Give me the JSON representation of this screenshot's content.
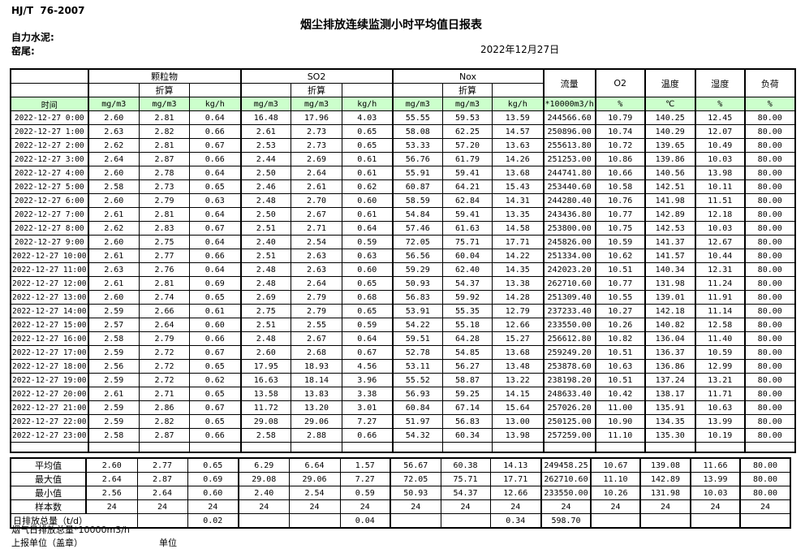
{
  "meta": {
    "standard": "HJ/T  76-2007",
    "title": "烟尘排放连续监测小时平均值日报表",
    "company": "自力水泥:",
    "kiln": "窑尾:",
    "date": "2022年12月27日"
  },
  "table": {
    "time_label": "时间",
    "converted_label": "折算",
    "groups": {
      "pm": "颗粒物",
      "so2": "SO2",
      "nox": "Nox",
      "flow": "流量",
      "o2": "O2",
      "temp": "温度",
      "humidity": "湿度",
      "load": "负荷"
    },
    "units": [
      "mg/m3",
      "mg/m3",
      "kg/h",
      "mg/m3",
      "mg/m3",
      "kg/h",
      "mg/m3",
      "mg/m3",
      "kg/h",
      "*10000m3/h",
      "%",
      "℃",
      "%",
      "%"
    ],
    "rows": [
      [
        "2022-12-27 0:00",
        "2.60",
        "2.81",
        "0.64",
        "16.48",
        "17.96",
        "4.03",
        "55.55",
        "59.53",
        "13.59",
        "244566.60",
        "10.79",
        "140.25",
        "12.45",
        "80.00"
      ],
      [
        "2022-12-27 1:00",
        "2.63",
        "2.82",
        "0.66",
        "2.61",
        "2.73",
        "0.65",
        "58.08",
        "62.25",
        "14.57",
        "250896.00",
        "10.74",
        "140.29",
        "12.07",
        "80.00"
      ],
      [
        "2022-12-27 2:00",
        "2.62",
        "2.81",
        "0.67",
        "2.53",
        "2.73",
        "0.65",
        "53.33",
        "57.20",
        "13.63",
        "255613.80",
        "10.72",
        "139.65",
        "10.49",
        "80.00"
      ],
      [
        "2022-12-27 3:00",
        "2.64",
        "2.87",
        "0.66",
        "2.44",
        "2.69",
        "0.61",
        "56.76",
        "61.79",
        "14.26",
        "251253.00",
        "10.86",
        "139.86",
        "10.03",
        "80.00"
      ],
      [
        "2022-12-27 4:00",
        "2.60",
        "2.78",
        "0.64",
        "2.50",
        "2.64",
        "0.61",
        "55.91",
        "59.41",
        "13.68",
        "244741.80",
        "10.66",
        "140.56",
        "13.98",
        "80.00"
      ],
      [
        "2022-12-27 5:00",
        "2.58",
        "2.73",
        "0.65",
        "2.46",
        "2.61",
        "0.62",
        "60.87",
        "64.21",
        "15.43",
        "253440.60",
        "10.58",
        "142.51",
        "10.11",
        "80.00"
      ],
      [
        "2022-12-27 6:00",
        "2.60",
        "2.79",
        "0.63",
        "2.48",
        "2.70",
        "0.60",
        "58.59",
        "62.84",
        "14.31",
        "244280.40",
        "10.76",
        "141.98",
        "11.51",
        "80.00"
      ],
      [
        "2022-12-27 7:00",
        "2.61",
        "2.81",
        "0.64",
        "2.50",
        "2.67",
        "0.61",
        "54.84",
        "59.41",
        "13.35",
        "243436.80",
        "10.77",
        "142.89",
        "12.18",
        "80.00"
      ],
      [
        "2022-12-27 8:00",
        "2.62",
        "2.83",
        "0.67",
        "2.51",
        "2.71",
        "0.64",
        "57.46",
        "61.63",
        "14.58",
        "253800.00",
        "10.75",
        "142.53",
        "10.03",
        "80.00"
      ],
      [
        "2022-12-27 9:00",
        "2.60",
        "2.75",
        "0.64",
        "2.40",
        "2.54",
        "0.59",
        "72.05",
        "75.71",
        "17.71",
        "245826.00",
        "10.59",
        "141.37",
        "12.67",
        "80.00"
      ],
      [
        "2022-12-27 10:00",
        "2.61",
        "2.77",
        "0.66",
        "2.51",
        "2.63",
        "0.63",
        "56.56",
        "60.04",
        "14.22",
        "251334.00",
        "10.62",
        "141.57",
        "10.44",
        "80.00"
      ],
      [
        "2022-12-27 11:00",
        "2.63",
        "2.76",
        "0.64",
        "2.48",
        "2.63",
        "0.60",
        "59.29",
        "62.40",
        "14.35",
        "242023.20",
        "10.51",
        "140.34",
        "12.31",
        "80.00"
      ],
      [
        "2022-12-27 12:00",
        "2.61",
        "2.81",
        "0.69",
        "2.48",
        "2.64",
        "0.65",
        "50.93",
        "54.37",
        "13.38",
        "262710.60",
        "10.77",
        "131.98",
        "11.24",
        "80.00"
      ],
      [
        "2022-12-27 13:00",
        "2.60",
        "2.74",
        "0.65",
        "2.69",
        "2.79",
        "0.68",
        "56.83",
        "59.92",
        "14.28",
        "251309.40",
        "10.55",
        "139.01",
        "11.91",
        "80.00"
      ],
      [
        "2022-12-27 14:00",
        "2.59",
        "2.66",
        "0.61",
        "2.75",
        "2.79",
        "0.65",
        "53.91",
        "55.35",
        "12.79",
        "237233.40",
        "10.27",
        "142.18",
        "11.14",
        "80.00"
      ],
      [
        "2022-12-27 15:00",
        "2.57",
        "2.64",
        "0.60",
        "2.51",
        "2.55",
        "0.59",
        "54.22",
        "55.18",
        "12.66",
        "233550.00",
        "10.26",
        "140.82",
        "12.58",
        "80.00"
      ],
      [
        "2022-12-27 16:00",
        "2.58",
        "2.79",
        "0.66",
        "2.48",
        "2.67",
        "0.64",
        "59.51",
        "64.28",
        "15.27",
        "256612.80",
        "10.82",
        "136.04",
        "11.40",
        "80.00"
      ],
      [
        "2022-12-27 17:00",
        "2.59",
        "2.72",
        "0.67",
        "2.60",
        "2.68",
        "0.67",
        "52.78",
        "54.85",
        "13.68",
        "259249.20",
        "10.51",
        "136.37",
        "10.59",
        "80.00"
      ],
      [
        "2022-12-27 18:00",
        "2.56",
        "2.72",
        "0.65",
        "17.95",
        "18.93",
        "4.56",
        "53.11",
        "56.27",
        "13.48",
        "253878.60",
        "10.63",
        "136.86",
        "12.99",
        "80.00"
      ],
      [
        "2022-12-27 19:00",
        "2.59",
        "2.72",
        "0.62",
        "16.63",
        "18.14",
        "3.96",
        "55.52",
        "58.87",
        "13.22",
        "238198.20",
        "10.51",
        "137.24",
        "13.21",
        "80.00"
      ],
      [
        "2022-12-27 20:00",
        "2.61",
        "2.71",
        "0.65",
        "13.58",
        "13.83",
        "3.38",
        "56.93",
        "59.25",
        "14.15",
        "248633.40",
        "10.42",
        "138.17",
        "11.71",
        "80.00"
      ],
      [
        "2022-12-27 21:00",
        "2.59",
        "2.86",
        "0.67",
        "11.72",
        "13.20",
        "3.01",
        "60.84",
        "67.14",
        "15.64",
        "257026.20",
        "11.00",
        "135.91",
        "10.63",
        "80.00"
      ],
      [
        "2022-12-27 22:00",
        "2.59",
        "2.82",
        "0.65",
        "29.08",
        "29.06",
        "7.27",
        "51.97",
        "56.83",
        "13.00",
        "250125.00",
        "10.90",
        "134.35",
        "13.99",
        "80.00"
      ],
      [
        "2022-12-27 23:00",
        "2.58",
        "2.87",
        "0.66",
        "2.58",
        "2.88",
        "0.66",
        "54.32",
        "60.34",
        "13.98",
        "257259.00",
        "11.10",
        "135.30",
        "10.19",
        "80.00"
      ]
    ],
    "summary": [
      {
        "label": "平均值",
        "values": [
          "2.60",
          "2.77",
          "0.65",
          "6.29",
          "6.64",
          "1.57",
          "56.67",
          "60.38",
          "14.13",
          "249458.25",
          "10.67",
          "139.08",
          "11.66",
          "80.00"
        ]
      },
      {
        "label": "最大值",
        "values": [
          "2.64",
          "2.87",
          "0.69",
          "29.08",
          "29.06",
          "7.27",
          "72.05",
          "75.71",
          "17.71",
          "262710.60",
          "11.10",
          "142.89",
          "13.99",
          "80.00"
        ]
      },
      {
        "label": "最小值",
        "values": [
          "2.56",
          "2.64",
          "0.60",
          "2.40",
          "2.54",
          "0.59",
          "50.93",
          "54.37",
          "12.66",
          "233550.00",
          "10.26",
          "131.98",
          "10.03",
          "80.00"
        ]
      },
      {
        "label": "样本数",
        "values": [
          "24",
          "24",
          "24",
          "24",
          "24",
          "24",
          "24",
          "24",
          "24",
          "24",
          "24",
          "24",
          "24",
          "24"
        ]
      },
      {
        "label": "日排放总量（t/d）",
        "values": [
          "",
          "0.02",
          "",
          "",
          "0.04",
          "",
          "",
          "0.34",
          "598.70",
          "",
          "",
          "",
          ""
        ]
      }
    ]
  },
  "footer": {
    "note": "烟气日排放总量*10000m3/h",
    "report_unit": "上报单位（盖章）",
    "unit_label": "单位"
  }
}
